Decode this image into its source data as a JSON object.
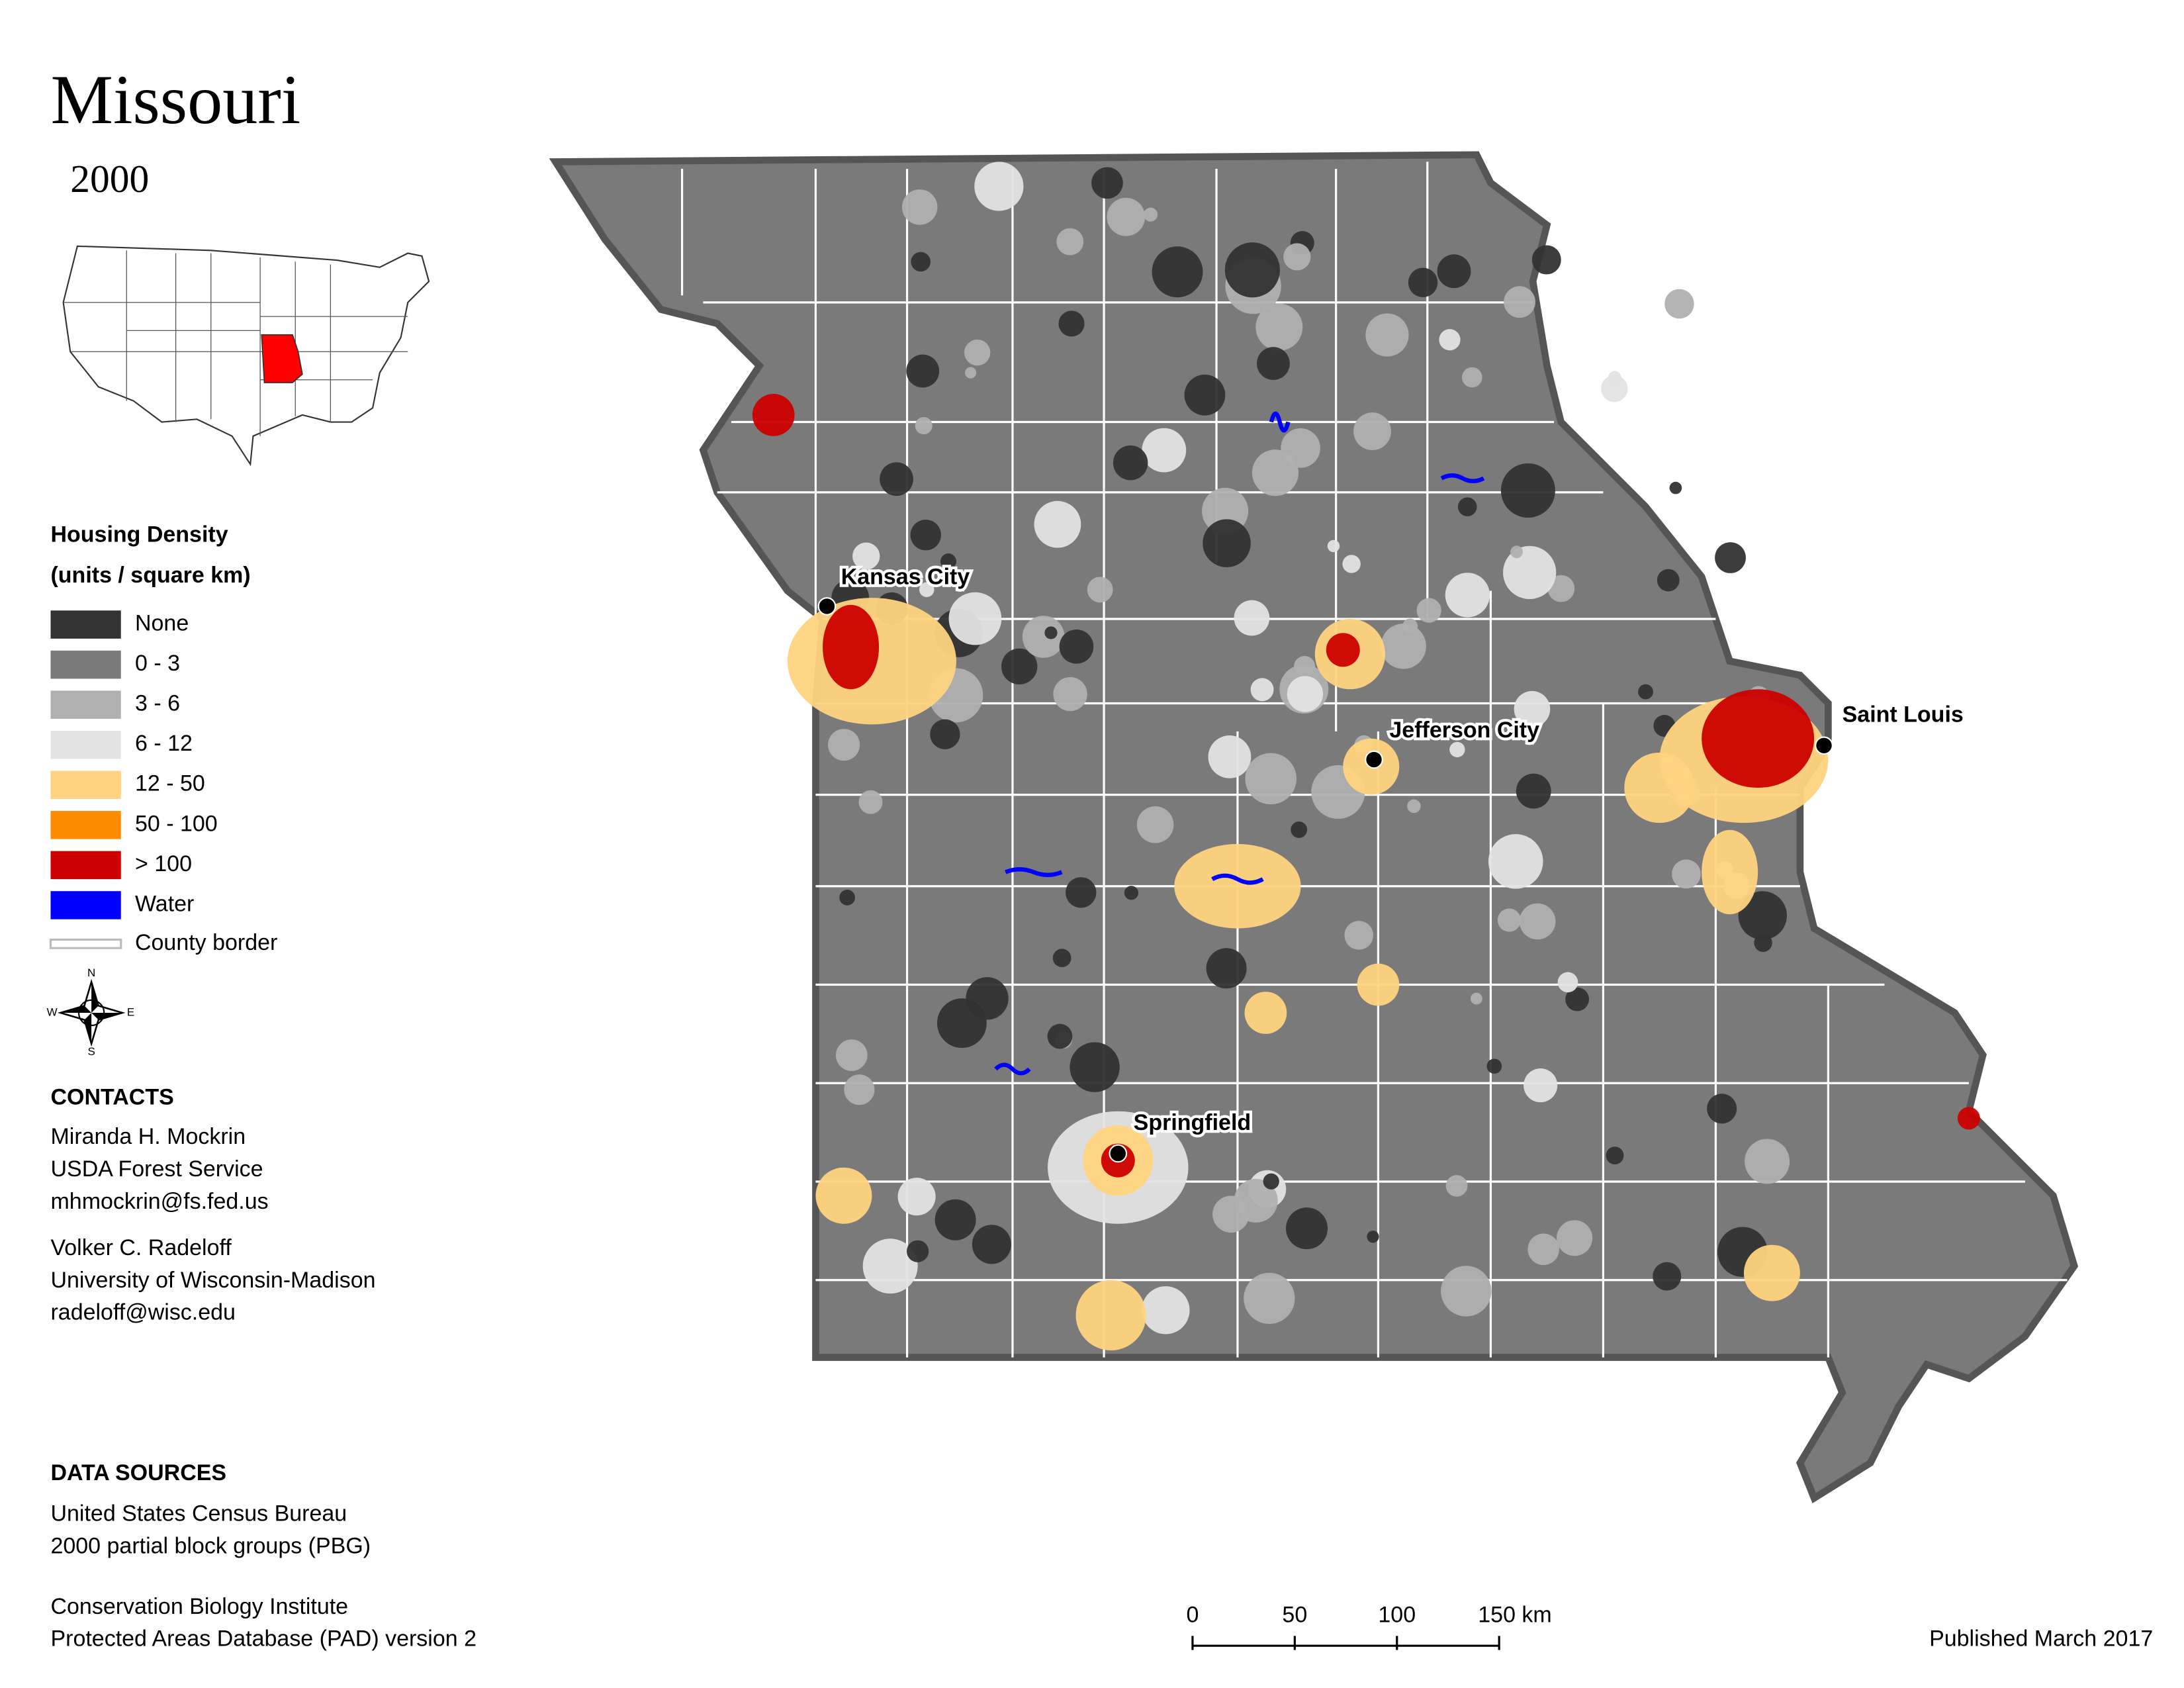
{
  "title": "Missouri",
  "year": "2000",
  "legend": {
    "title": "Housing Density",
    "subtitle": "(units / square km)",
    "items": [
      {
        "label": "None",
        "color": "#333333"
      },
      {
        "label": "0 - 3",
        "color": "#7a7a7a"
      },
      {
        "label": "3 - 6",
        "color": "#b0b0b0"
      },
      {
        "label": "6 - 12",
        "color": "#e3e3e3"
      },
      {
        "label": "12 - 50",
        "color": "#ffd380"
      },
      {
        "label": "50 - 100",
        "color": "#ff8c00"
      },
      {
        "label": "> 100",
        "color": "#cc0000"
      },
      {
        "label": "Water",
        "color": "#0000ff"
      }
    ],
    "border_label": "County border"
  },
  "compass": [
    "N",
    "E",
    "S",
    "W"
  ],
  "cities": [
    "Kansas City",
    "Jefferson City",
    "Saint Louis",
    "Springfield"
  ],
  "contacts": {
    "heading": "CONTACTS",
    "people": [
      [
        "Miranda H. Mockrin",
        "USDA Forest Service",
        "mhmockrin@fs.fed.us"
      ],
      [
        "Volker C. Radeloff",
        "University of Wisconsin-Madison",
        "radeloff@wisc.edu"
      ]
    ]
  },
  "data_sources": {
    "heading": "DATA SOURCES",
    "groups": [
      [
        "United States Census Bureau",
        "2000 partial block groups (PBG)"
      ],
      [
        "Conservation Biology Institute",
        "Protected Areas Database (PAD) version 2"
      ]
    ]
  },
  "scale_bar": {
    "ticks": [
      0,
      50,
      100,
      {
        "value": 150,
        "label": "150 km"
      }
    ]
  },
  "published": "Published March 2017"
}
